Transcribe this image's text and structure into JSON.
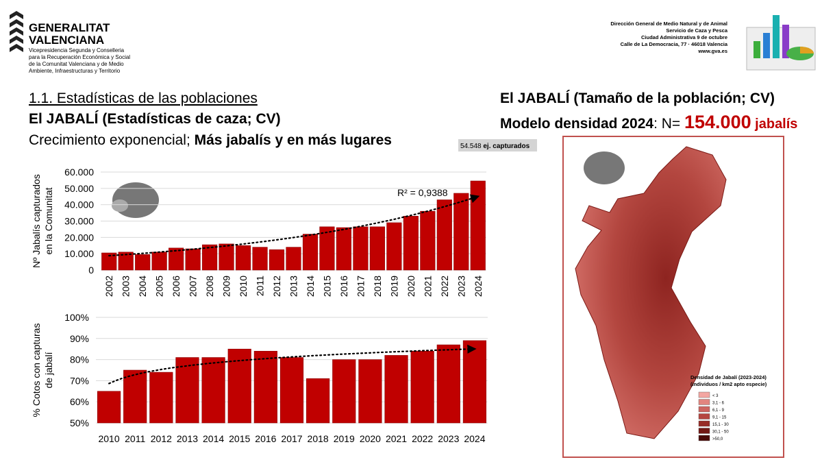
{
  "header": {
    "org": [
      "GENERALITAT",
      "VALENCIANA"
    ],
    "dept": [
      "Vicepresidencia Segunda y Conselleria",
      "para la Recuperación Económica y Social",
      "de la Comunitat Valenciana y de Medio",
      "Ambiente, Infraestructuras y Territorio"
    ],
    "service": [
      "Dirección General de Medio Natural y de Animal",
      "Servicio de Caza y Pesca",
      "Ciudad Administrativa 9 de octubre",
      "Calle de La Democracia, 77 · 46018 Valencia",
      "www.gva.es"
    ]
  },
  "headings": {
    "section": "1.1. Estadísticas de las poblaciones",
    "left_title": "El JABALÍ (Estadísticas de caza; CV)",
    "subtitle_a": "Crecimiento exponencial; ",
    "subtitle_b": "Más jabalís y en más lugares",
    "note_n": "54.548",
    "note_text": " ej. capturados",
    "right_title": "El JABALÍ (Tamaño de la población; CV)",
    "model_a": "Modelo densidad 2024",
    "model_b": ": N= ",
    "model_n": "154.000",
    "model_unit": " jabalís"
  },
  "map": {
    "legend_title": "Densidad de Jabalí (2023-2024)",
    "legend_subtitle": "(individuos / km2 apto especie)",
    "legend_items": [
      "< 3",
      "3,1 - 6",
      "6,1 - 9",
      "9,1 - 15",
      "15,1 - 30",
      "30,1 - 50",
      ">50,0"
    ],
    "legend_colors": [
      "#f3a6a2",
      "#e2857f",
      "#cd6560",
      "#b54640",
      "#972c27",
      "#721814",
      "#4a0a08"
    ]
  },
  "chart_data": [
    {
      "type": "bar",
      "ylabel": [
        "Nº Jabalís capturados",
        "en la Comunitat"
      ],
      "categories": [
        "2002",
        "2003",
        "2004",
        "2005",
        "2006",
        "2007",
        "2008",
        "2009",
        "2010",
        "2011",
        "2012",
        "2013",
        "2014",
        "2015",
        "2016",
        "2017",
        "2018",
        "2019",
        "2020",
        "2021",
        "2022",
        "2023",
        "2024"
      ],
      "values": [
        10500,
        11000,
        9500,
        11000,
        13500,
        13000,
        15500,
        16000,
        15000,
        14000,
        12500,
        14000,
        22000,
        26500,
        26000,
        26500,
        26500,
        29000,
        33000,
        36000,
        43000,
        47000,
        54548
      ],
      "color": "#c00000",
      "ylim": [
        0,
        60000
      ],
      "yticks": [
        0,
        {
          "value": 10000,
          "label": "10.000"
        },
        {
          "value": 20000,
          "label": "20.000"
        },
        {
          "value": 30000,
          "label": "30.000"
        },
        {
          "value": 40000,
          "label": "40.000"
        },
        {
          "value": 50000,
          "label": "50.000"
        },
        {
          "value": 60000,
          "label": "60.000"
        }
      ],
      "grid": true,
      "trendline": "exponential",
      "annotation": "R² = 0,9388"
    },
    {
      "type": "bar",
      "ylabel": [
        "% Cotos con capturas",
        "de jabalí"
      ],
      "categories": [
        "2010",
        "2011",
        "2012",
        "2013",
        "2014",
        "2015",
        "2016",
        "2017",
        "2018",
        "2019",
        "2020",
        "2021",
        "2022",
        "2023",
        "2024"
      ],
      "values": [
        65,
        75,
        74,
        81,
        81,
        85,
        84,
        81,
        71,
        80,
        80,
        82,
        84,
        87,
        89
      ],
      "color": "#c00000",
      "ylim": [
        50,
        100
      ],
      "yticks": [
        {
          "value": 50,
          "label": "50%"
        },
        {
          "value": 60,
          "label": "60%"
        },
        {
          "value": 70,
          "label": "70%"
        },
        {
          "value": 80,
          "label": "80%"
        },
        {
          "value": 90,
          "label": "90%"
        },
        {
          "value": 100,
          "label": "100%"
        }
      ],
      "grid": true,
      "trendline": "logarithmic"
    }
  ]
}
